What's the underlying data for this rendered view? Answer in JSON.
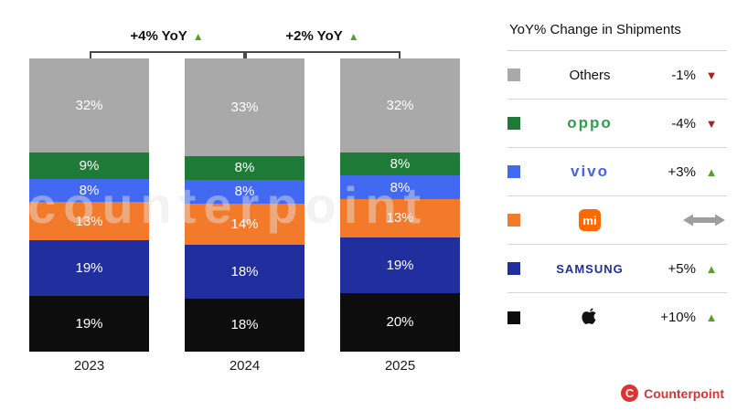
{
  "watermark": "counterpoint",
  "chart_data": {
    "type": "bar",
    "stacked": true,
    "categories": [
      "2023",
      "2024",
      "2025"
    ],
    "series": [
      {
        "name": "Others",
        "color": "#a9a9a9",
        "values": [
          32,
          33,
          32
        ]
      },
      {
        "name": "OPPO",
        "color": "#1f7a38",
        "values": [
          9,
          8,
          8
        ]
      },
      {
        "name": "vivo",
        "color": "#4169f1",
        "values": [
          8,
          8,
          8
        ]
      },
      {
        "name": "Xiaomi",
        "color": "#f47a2b",
        "values": [
          13,
          14,
          13
        ]
      },
      {
        "name": "Samsung",
        "color": "#202f9d",
        "values": [
          19,
          18,
          19
        ]
      },
      {
        "name": "Apple",
        "color": "#0d0d0d",
        "values": [
          19,
          18,
          20
        ]
      }
    ],
    "value_suffix": "%",
    "annotations": [
      {
        "label": "+4% YoY",
        "direction": "up",
        "between": [
          "2023",
          "2024"
        ]
      },
      {
        "label": "+2% YoY",
        "direction": "up",
        "between": [
          "2024",
          "2025"
        ]
      }
    ],
    "legend_position": "right",
    "grid": false
  },
  "legend": {
    "title": "YoY% Change in Shipments",
    "rows": [
      {
        "key": "others",
        "brand": "Others",
        "icon": "others-swatch-label",
        "change": "-1%",
        "direction": "down",
        "swatch": "#a9a9a9"
      },
      {
        "key": "oppo",
        "brand": "OPPO",
        "icon": "oppo-logo-icon",
        "change": "-4%",
        "direction": "down",
        "swatch": "#1f7a38"
      },
      {
        "key": "vivo",
        "brand": "vivo",
        "icon": "vivo-logo-icon",
        "change": "+3%",
        "direction": "up",
        "swatch": "#4169f1"
      },
      {
        "key": "xiaomi",
        "brand": "mi",
        "icon": "xiaomi-logo-icon",
        "change": "",
        "direction": "flat",
        "swatch": "#f47a2b"
      },
      {
        "key": "samsung",
        "brand": "SAMSUNG",
        "icon": "samsung-logo-icon",
        "change": "+5%",
        "direction": "up",
        "swatch": "#202f9d"
      },
      {
        "key": "apple",
        "brand": "Apple",
        "icon": "apple-logo-icon",
        "change": "+10%",
        "direction": "up",
        "swatch": "#0d0d0d"
      }
    ],
    "indicator_colors": {
      "up": "#57a02e",
      "down": "#a32424",
      "flat": "#9e9e9e"
    }
  },
  "footer": {
    "brand": "Counterpoint",
    "color": "#e03131"
  }
}
